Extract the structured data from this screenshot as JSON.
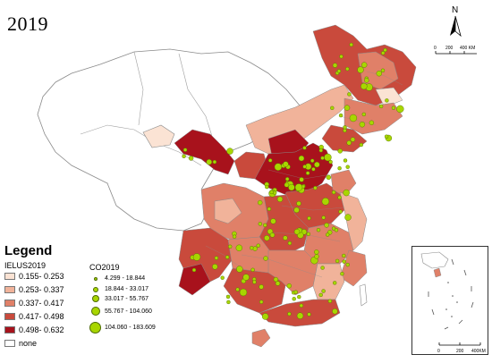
{
  "title": "2019",
  "north_arrow": {
    "letter": "N",
    "scale_labels": [
      "0",
      "200",
      "400 KM"
    ]
  },
  "inset_scale_labels": [
    "0",
    "200",
    "400KM"
  ],
  "legend": {
    "title": "Legend",
    "fill_header": "IELUS2019",
    "fill_classes": [
      {
        "label": "0.155- 0.253",
        "color": "#fbe3d4"
      },
      {
        "label": "0.253- 0.337",
        "color": "#f1b39a"
      },
      {
        "label": "0.337- 0.417",
        "color": "#e08068"
      },
      {
        "label": "0.417- 0.498",
        "color": "#c94a3c"
      },
      {
        "label": "0.498- 0.632",
        "color": "#a8121c"
      },
      {
        "label": "none",
        "color": "#ffffff"
      }
    ],
    "dot_header": "CO2019",
    "dot_classes": [
      {
        "label": "4.299 - 18.844",
        "size": 4
      },
      {
        "label": "18.844 - 33.017",
        "size": 6
      },
      {
        "label": "33.017 - 55.767",
        "size": 8
      },
      {
        "label": "55.767 - 104.060",
        "size": 10
      },
      {
        "label": "104.060 - 183.609",
        "size": 13
      }
    ]
  },
  "colors": {
    "dot_fill": "#a8d600",
    "dot_stroke": "#4d6b00",
    "boundary": "#8a8a8a"
  }
}
